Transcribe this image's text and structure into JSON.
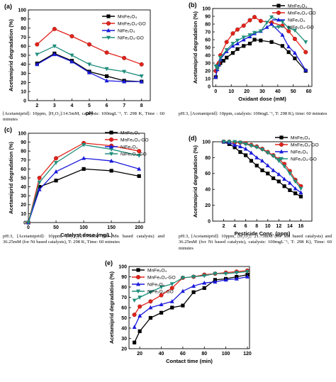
{
  "legend_labels": [
    "MnFe₂O₄",
    "MnFe₂O₄-GO",
    "NiFe₂O₄",
    "NiFe₂O₄-GO"
  ],
  "colors": {
    "MnFe₂O₄": "#000000",
    "MnFe₂O₄-GO": "#e2231a",
    "NiFe₂O₄": "#1a1adb",
    "NiFe₂O₄-GO": "#1f8f7c"
  },
  "captions": {
    "a": "[Acetamiprid]: 10ppm, [H₂O₂]:14.5mM, catalysts: 100mgL⁻¹, T: 298 K, Time : 60 minutes",
    "b": "pH:3, [Acetamiprid]: 10ppm, catalysts: 100mgL⁻¹, T: 298 K), time: 60 minutes",
    "c": "pH:3, [Acetamiprid]: 10ppm, [H₂O₂]:21.75mM (for Mn based catalysts) and 36.25mM (for Ni based catalysts), T: 298 K, Time: 60 minutes",
    "d": "pH:3, [Acetamiprid]: 10ppm, [H₂O₂]: 21.75mM (for Mn based catalysts) and 36.25mM (for Ni based catalysts), catalysts: 100mgL⁻¹, T: 298 K), Time: 60 minutes"
  },
  "chart_data": [
    {
      "panel": "(a)",
      "type": "line",
      "xlabel": "pH",
      "ylabel": "Acetamiprid degradation (%)",
      "xlim": [
        1.5,
        8.5
      ],
      "ylim": [
        0,
        100
      ],
      "xticks": [
        2,
        3,
        4,
        5,
        6,
        7,
        8
      ],
      "yticks": [
        0,
        10,
        20,
        30,
        40,
        50,
        60,
        70,
        80,
        90,
        100
      ],
      "legend_position": "top-right",
      "x": [
        2,
        3,
        4,
        5,
        6,
        7,
        8
      ],
      "series": [
        {
          "name": "MnFe₂O₄",
          "marker": "square",
          "values": [
            41,
            52,
            44,
            32,
            27,
            22,
            21
          ]
        },
        {
          "name": "MnFe₂O₄-GO",
          "marker": "circle",
          "values": [
            62,
            79,
            71,
            62,
            53,
            47,
            40
          ]
        },
        {
          "name": "NiFe₂O₄",
          "marker": "triangle-up",
          "values": [
            40,
            51,
            43,
            31,
            22,
            21,
            21
          ]
        },
        {
          "name": "NiFe₂O₄-GO",
          "marker": "triangle-down",
          "values": [
            51,
            60,
            50,
            40,
            35,
            32,
            27
          ]
        }
      ]
    },
    {
      "panel": "(b)",
      "type": "line",
      "xlabel": "Oxidant dose (mM)",
      "ylabel": "Acetamiprid degradation (%)",
      "xlim": [
        -2,
        62
      ],
      "ylim": [
        0,
        100
      ],
      "xticks": [
        0,
        10,
        20,
        30,
        40,
        50,
        60
      ],
      "yticks": [
        0,
        10,
        20,
        30,
        40,
        50,
        60,
        70,
        80,
        90,
        100
      ],
      "legend_position": "top-right",
      "series": [
        {
          "name": "MnFe₂O₄",
          "marker": "square",
          "x": [
            0,
            1,
            2,
            3,
            5,
            7,
            11,
            14,
            18,
            22,
            25,
            29,
            36,
            43,
            47,
            51,
            58
          ],
          "values": [
            12,
            25,
            28,
            30,
            33,
            37,
            43,
            48,
            52,
            55,
            60,
            59,
            57,
            52,
            44,
            36,
            20
          ]
        },
        {
          "name": "MnFe₂O₄-GO",
          "marker": "circle",
          "x": [
            0,
            1,
            2,
            3,
            7,
            11,
            14,
            18,
            22,
            25,
            29,
            36,
            43,
            47,
            51,
            58
          ],
          "values": [
            20,
            27,
            30,
            40,
            57,
            68,
            73,
            78,
            85,
            89,
            84,
            82,
            78,
            71,
            61,
            44
          ]
        },
        {
          "name": "NiFe₂O₄",
          "marker": "triangle-up",
          "x": [
            0,
            1,
            2,
            3,
            7,
            11,
            14,
            18,
            22,
            25,
            29,
            33,
            36,
            43,
            47,
            51,
            58
          ],
          "values": [
            12,
            22,
            28,
            35,
            45,
            52,
            55,
            60,
            64,
            68,
            71,
            76,
            80,
            66,
            51,
            43,
            21
          ]
        },
        {
          "name": "NiFe₂O₄-GO",
          "marker": "triangle-down",
          "x": [
            0,
            1,
            3,
            7,
            11,
            14,
            18,
            22,
            25,
            29,
            33,
            36,
            43,
            47,
            51,
            58
          ],
          "values": [
            26,
            23,
            37,
            47,
            55,
            59,
            63,
            66,
            69,
            71,
            82,
            89,
            83,
            75,
            72,
            57
          ]
        }
      ]
    },
    {
      "panel": "(c)",
      "type": "line",
      "xlabel": "Catalyst dose (mg/L)",
      "ylabel": "Acetamiprid degradation (%)",
      "xlim": [
        0,
        210
      ],
      "ylim": [
        0,
        100
      ],
      "xticks": [
        0,
        50,
        100,
        150,
        200
      ],
      "yticks": [
        0,
        10,
        20,
        30,
        40,
        50,
        60,
        70,
        80,
        90,
        100
      ],
      "legend_position": "top-right",
      "x": [
        0,
        20,
        50,
        100,
        150,
        200
      ],
      "series": [
        {
          "name": "MnFe₂O₄",
          "marker": "square",
          "values": [
            0,
            40,
            47,
            60,
            58,
            52
          ]
        },
        {
          "name": "MnFe₂O₄-GO",
          "marker": "circle",
          "values": [
            0,
            50,
            72,
            89,
            86,
            80
          ]
        },
        {
          "name": "NiFe₂O₄",
          "marker": "triangle-up",
          "values": [
            0,
            37,
            57,
            72,
            69,
            60
          ]
        },
        {
          "name": "NiFe₂O₄-GO",
          "marker": "triangle-down",
          "values": [
            0,
            45,
            67,
            87,
            82,
            75
          ]
        }
      ]
    },
    {
      "panel": "(d)",
      "type": "line",
      "xlabel": "Pesticide Conc. (ppm)",
      "ylabel": "Acetamiprid degradation (%)",
      "xlim": [
        0,
        18
      ],
      "ylim": [
        0,
        100
      ],
      "xticks": [
        2,
        4,
        6,
        8,
        10,
        12,
        14,
        16
      ],
      "yticks": [
        0,
        20,
        40,
        60,
        80,
        100
      ],
      "legend_position": "top-right",
      "x": [
        2,
        3,
        4,
        5,
        6,
        7,
        8,
        9,
        10,
        11,
        12,
        13,
        14,
        15,
        16
      ],
      "series": [
        {
          "name": "MnFe₂O₄",
          "marker": "square",
          "values": [
            100,
            97,
            93,
            87,
            83,
            76,
            70,
            64,
            60,
            54,
            50,
            44,
            39,
            35,
            31
          ]
        },
        {
          "name": "MnFe₂O₄-GO",
          "marker": "circle",
          "values": [
            100,
            100,
            99,
            99,
            98,
            96,
            94,
            91,
            87,
            83,
            78,
            72,
            63,
            52,
            44
          ]
        },
        {
          "name": "NiFe₂O₄",
          "marker": "triangle-up",
          "values": [
            100,
            99,
            96,
            94,
            91,
            86,
            80,
            76,
            70,
            64,
            59,
            53,
            48,
            41,
            36
          ]
        },
        {
          "name": "NiFe₂O₄-GO",
          "marker": "triangle-down",
          "values": [
            100,
            100,
            100,
            99,
            97,
            95,
            93,
            90,
            86,
            82,
            76,
            69,
            60,
            50,
            41
          ]
        }
      ]
    },
    {
      "panel": "(e)",
      "type": "line",
      "xlabel": "Contact time (min)",
      "ylabel": "Acetamiprid degradation (%)",
      "xlim": [
        10,
        122
      ],
      "ylim": [
        20,
        100
      ],
      "xticks": [
        20,
        40,
        60,
        80,
        100,
        120
      ],
      "yticks": [
        20,
        30,
        40,
        50,
        60,
        70,
        80,
        90,
        100
      ],
      "legend_position": "top-left",
      "x": [
        15,
        20,
        30,
        40,
        50,
        60,
        70,
        80,
        90,
        100,
        110,
        120
      ],
      "series": [
        {
          "name": "MnFe₂O₄",
          "marker": "square",
          "values": [
            26,
            37,
            50,
            55,
            60,
            62,
            75,
            79,
            87,
            88,
            90,
            92
          ]
        },
        {
          "name": "MnFe₂O₄-GO",
          "marker": "circle",
          "values": [
            53,
            61,
            66,
            72,
            79,
            89,
            90,
            92,
            93,
            94,
            95,
            96
          ]
        },
        {
          "name": "NiFe₂O₄",
          "marker": "triangle-up",
          "values": [
            41,
            52,
            60,
            63,
            66,
            76,
            81,
            84,
            85,
            87,
            88,
            90
          ]
        },
        {
          "name": "NiFe₂O₄-GO",
          "marker": "triangle-down",
          "values": [
            67,
            70,
            75,
            80,
            83,
            89,
            90,
            91,
            93,
            93,
            94,
            95
          ]
        }
      ]
    }
  ]
}
